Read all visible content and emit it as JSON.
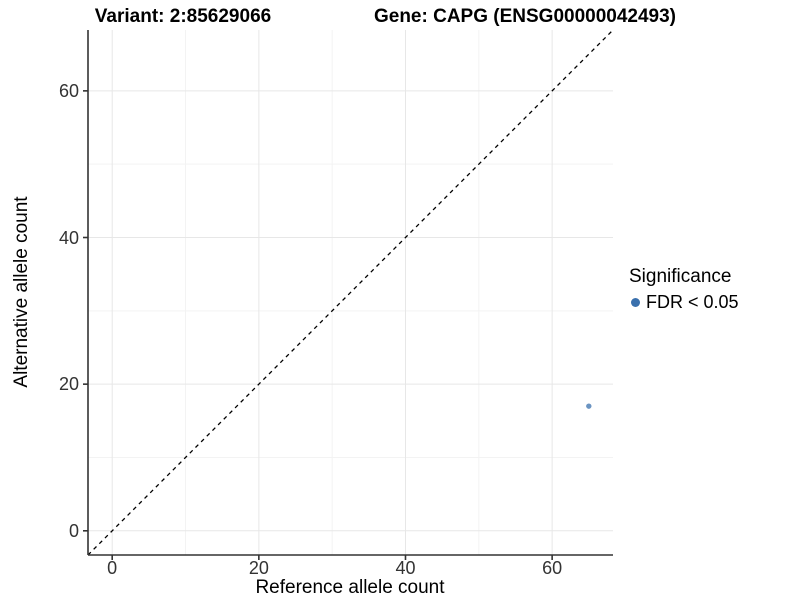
{
  "title": {
    "left": "Variant: 2:85629066",
    "right": "Gene: CAPG (ENSG00000042493)"
  },
  "legend": {
    "title": "Significance",
    "items": [
      {
        "label": "FDR < 0.05",
        "color": "#3a70ad"
      }
    ]
  },
  "chart_data": {
    "type": "scatter",
    "title": "Variant: 2:85629066    Gene: CAPG (ENSG00000042493)",
    "xlabel": "Reference allele count",
    "ylabel": "Alternative allele count",
    "xticks": [
      0,
      20,
      40,
      60
    ],
    "yticks": [
      0,
      20,
      40,
      60
    ],
    "minor_ticks": [
      10,
      30,
      50
    ],
    "xlim": [
      -3.3,
      68.3
    ],
    "ylim": [
      -3.3,
      68.3
    ],
    "grid": true,
    "legend_position": "right",
    "series": [
      {
        "name": "FDR < 0.05",
        "color": "#3a70ad",
        "points": [
          {
            "x": 65,
            "y": 17
          }
        ]
      }
    ],
    "reference_line": {
      "equation": "y = x",
      "style": "dashed",
      "color": "#000000"
    }
  },
  "colors": {
    "point": "#3a70ad",
    "grid_major": "#e7e7e7",
    "grid_minor": "#f3f3f3",
    "axis": "#333333",
    "dashed_line": "#000000",
    "background": "#ffffff"
  }
}
